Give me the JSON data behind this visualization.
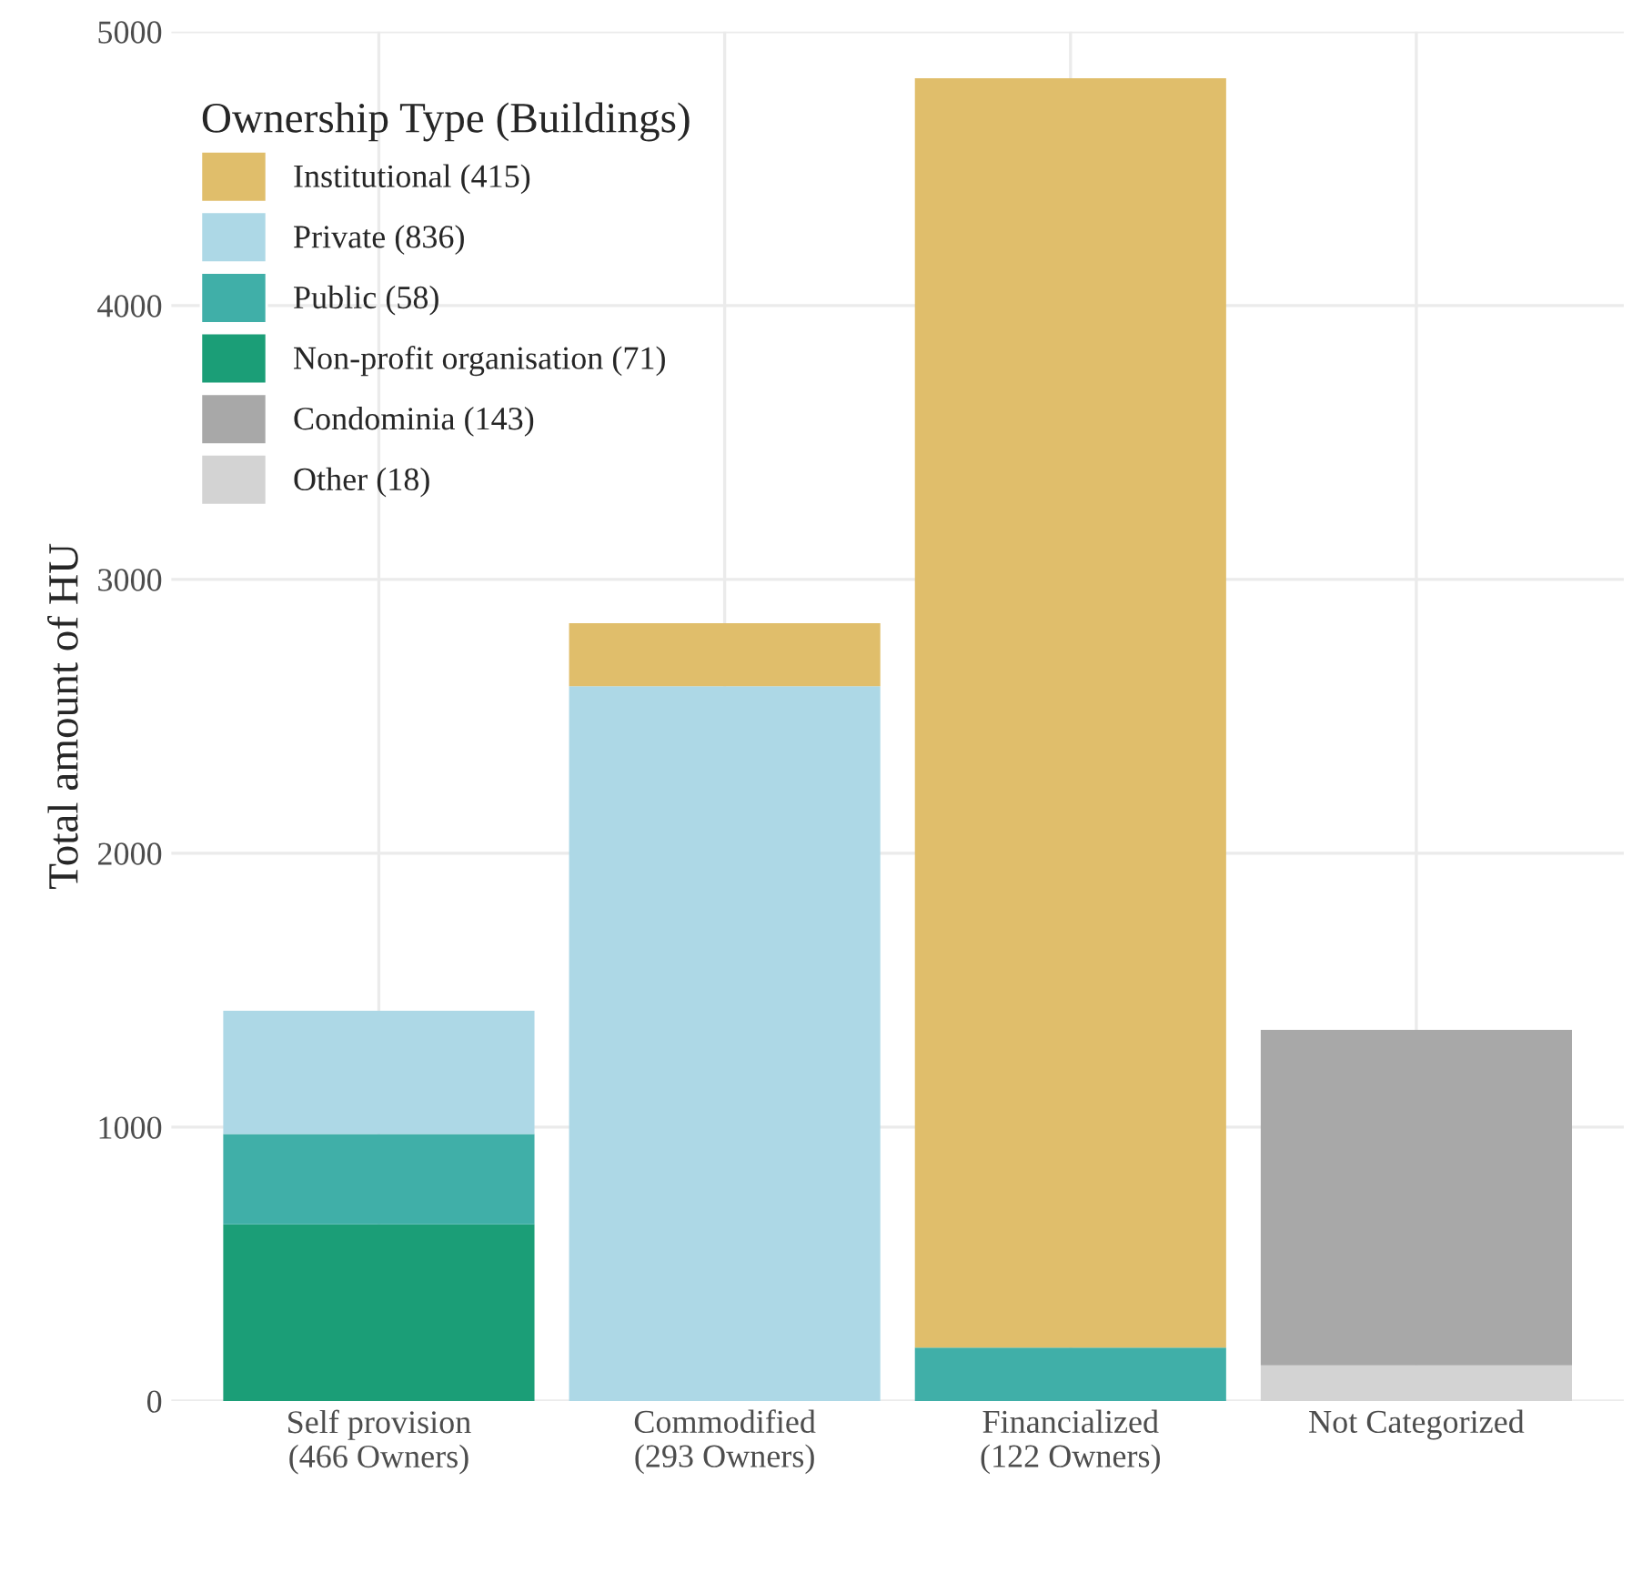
{
  "chart_data": {
    "type": "bar",
    "stacked": true,
    "ylabel": "Total amount of HU",
    "legend_title": "Ownership Type (Buildings)",
    "legend": "top left",
    "grid": true,
    "categories": [
      "Self provision\n(466 Owners)",
      "Commodified\n(293 Owners)",
      "Financialized\n(122 Owners)",
      "Not Categorized"
    ],
    "ylim": [
      0,
      5000
    ],
    "yticks": [
      0,
      1000,
      2000,
      3000,
      4000,
      5000
    ],
    "series": [
      {
        "name": "Other (18)",
        "color": "#d3d3d3",
        "values": [
          null,
          null,
          null,
          130
        ]
      },
      {
        "name": "Condominia (143)",
        "color": "#a8a8a8",
        "values": [
          null,
          null,
          null,
          1225
        ]
      },
      {
        "name": "Non-profit organisation (71)",
        "color": "#1b9e77",
        "values": [
          645,
          null,
          null,
          null
        ]
      },
      {
        "name": "Public (58)",
        "color": "#40afa8",
        "values": [
          330,
          null,
          195,
          null
        ]
      },
      {
        "name": "Private (836)",
        "color": "#add8e6",
        "values": [
          450,
          2610,
          null,
          null
        ]
      },
      {
        "name": "Institutional (415)",
        "color": "#e0be6b",
        "values": [
          null,
          230,
          4635,
          null
        ]
      }
    ]
  }
}
